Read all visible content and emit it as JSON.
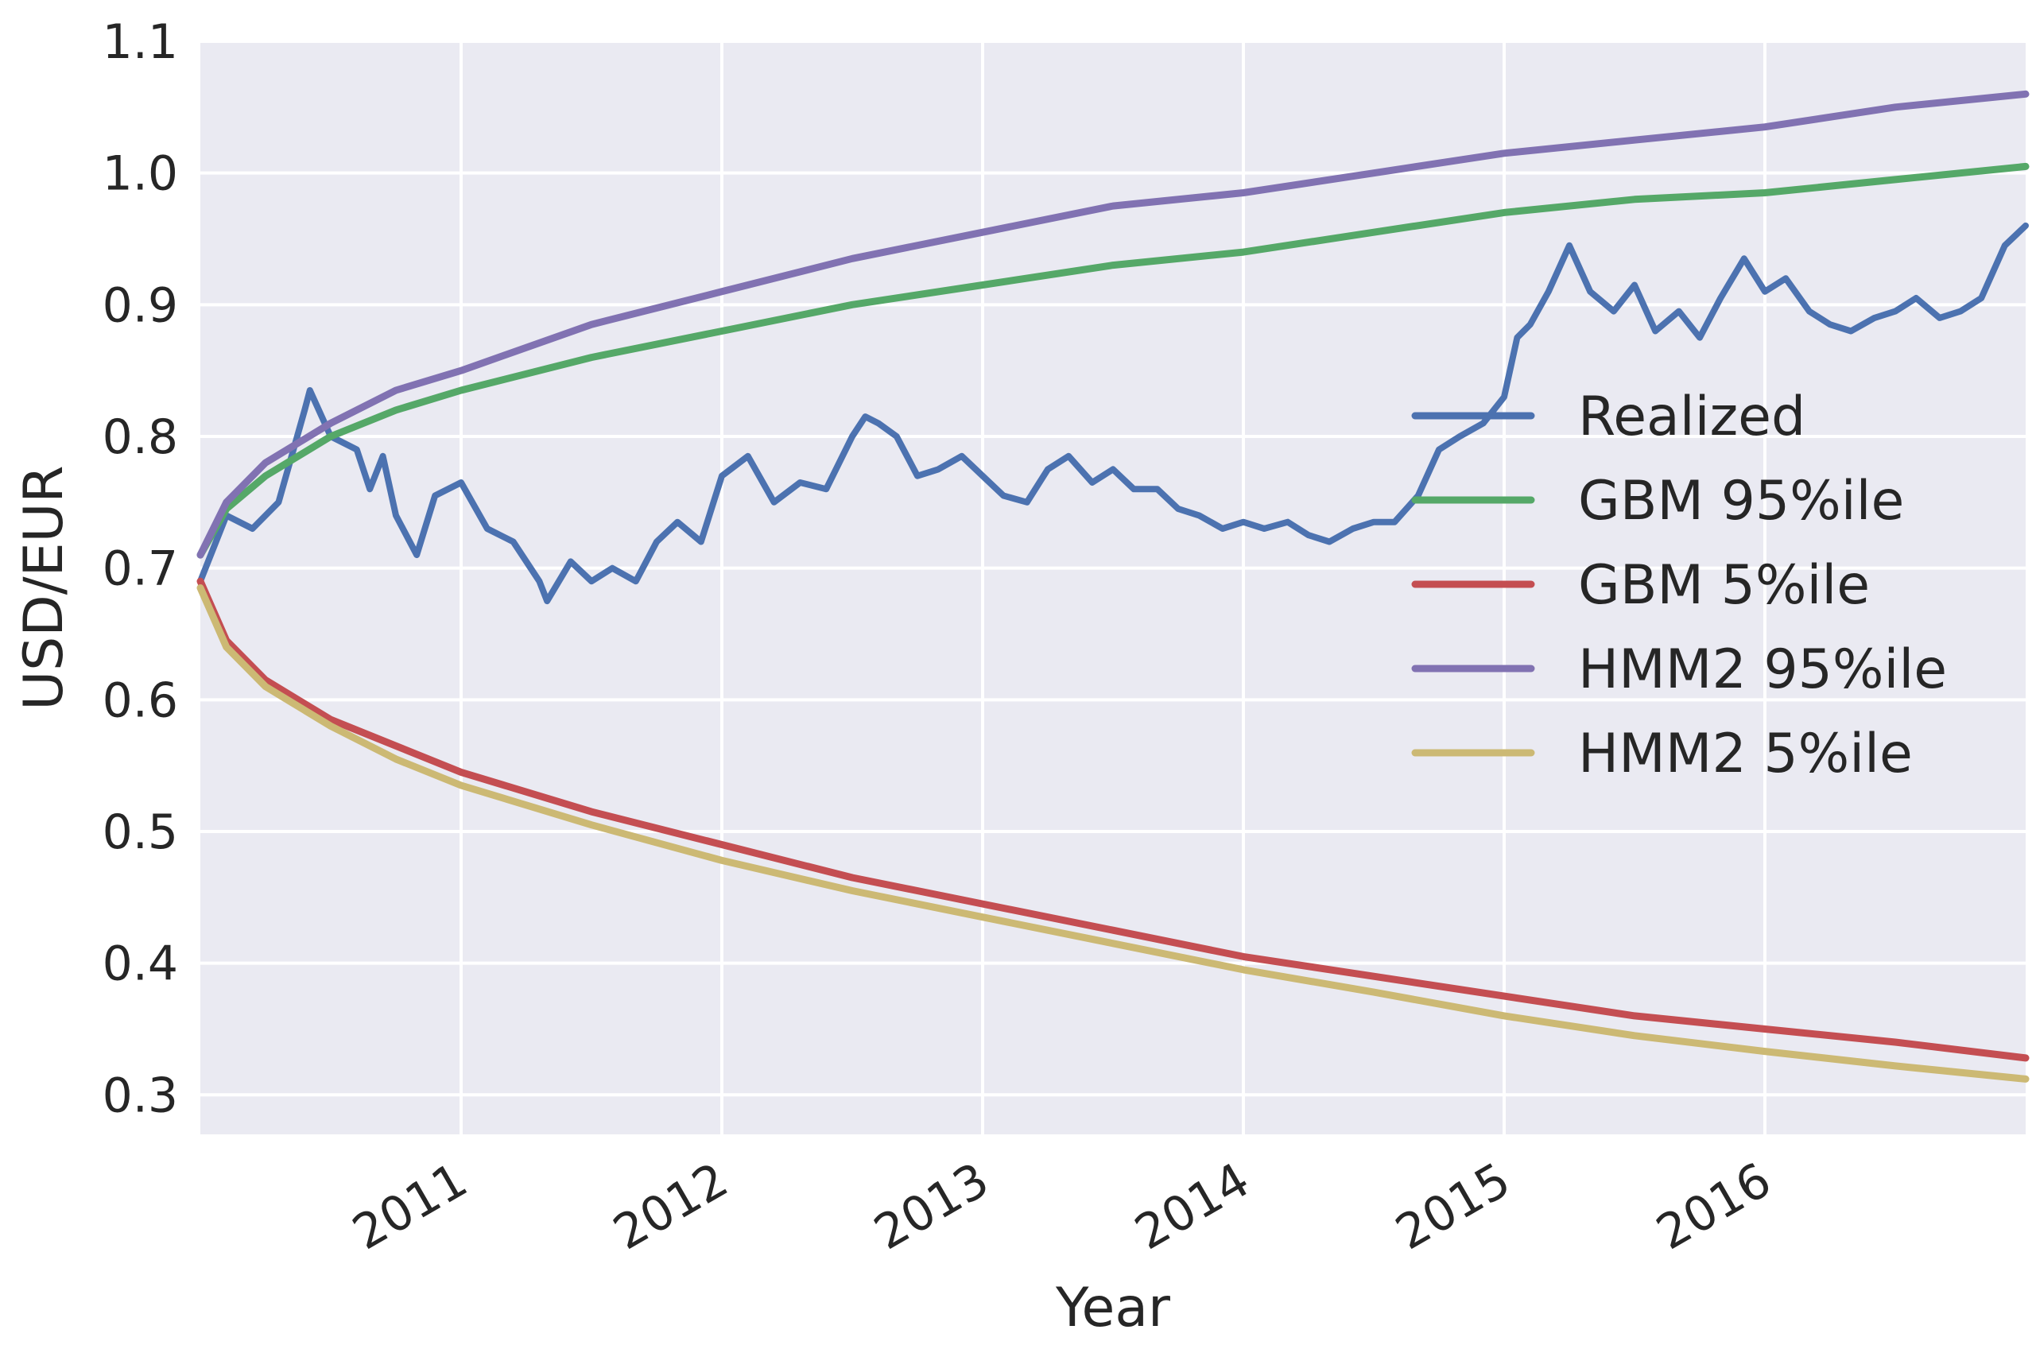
{
  "chart_data": {
    "type": "line",
    "title": "",
    "xlabel": "Year",
    "ylabel": "USD/EUR",
    "xlim": [
      2010.0,
      2017.0
    ],
    "ylim": [
      0.27,
      1.1
    ],
    "grid": true,
    "legend_position": "right",
    "x_ticks": [
      {
        "value": 2011,
        "label": "2011"
      },
      {
        "value": 2012,
        "label": "2012"
      },
      {
        "value": 2013,
        "label": "2013"
      },
      {
        "value": 2014,
        "label": "2014"
      },
      {
        "value": 2015,
        "label": "2015"
      },
      {
        "value": 2016,
        "label": "2016"
      }
    ],
    "y_ticks": [
      {
        "value": 0.3,
        "label": "0.3"
      },
      {
        "value": 0.4,
        "label": "0.4"
      },
      {
        "value": 0.5,
        "label": "0.5"
      },
      {
        "value": 0.6,
        "label": "0.6"
      },
      {
        "value": 0.7,
        "label": "0.7"
      },
      {
        "value": 0.8,
        "label": "0.8"
      },
      {
        "value": 0.9,
        "label": "0.9"
      },
      {
        "value": 1.0,
        "label": "1.0"
      },
      {
        "value": 1.1,
        "label": "1.1"
      }
    ],
    "series": [
      {
        "name": "Realized",
        "color": "#4c72b0",
        "x": [
          2010.0,
          2010.1,
          2010.2,
          2010.3,
          2010.4,
          2010.42,
          2010.5,
          2010.6,
          2010.65,
          2010.7,
          2010.75,
          2010.83,
          2010.9,
          2011.0,
          2011.1,
          2011.2,
          2011.3,
          2011.33,
          2011.42,
          2011.5,
          2011.58,
          2011.67,
          2011.75,
          2011.83,
          2011.92,
          2012.0,
          2012.1,
          2012.2,
          2012.3,
          2012.4,
          2012.5,
          2012.55,
          2012.6,
          2012.67,
          2012.75,
          2012.83,
          2012.92,
          2013.0,
          2013.08,
          2013.17,
          2013.25,
          2013.33,
          2013.42,
          2013.5,
          2013.58,
          2013.67,
          2013.75,
          2013.83,
          2013.92,
          2014.0,
          2014.08,
          2014.17,
          2014.25,
          2014.33,
          2014.42,
          2014.5,
          2014.58,
          2014.67,
          2014.75,
          2014.83,
          2014.92,
          2015.0,
          2015.05,
          2015.1,
          2015.17,
          2015.25,
          2015.33,
          2015.42,
          2015.5,
          2015.58,
          2015.67,
          2015.75,
          2015.83,
          2015.92,
          2016.0,
          2016.08,
          2016.17,
          2016.25,
          2016.33,
          2016.42,
          2016.5,
          2016.58,
          2016.67,
          2016.75,
          2016.83,
          2016.92,
          2017.0
        ],
        "y": [
          0.69,
          0.74,
          0.73,
          0.75,
          0.82,
          0.835,
          0.8,
          0.79,
          0.76,
          0.785,
          0.74,
          0.71,
          0.755,
          0.765,
          0.73,
          0.72,
          0.69,
          0.675,
          0.705,
          0.69,
          0.7,
          0.69,
          0.72,
          0.735,
          0.72,
          0.77,
          0.785,
          0.75,
          0.765,
          0.76,
          0.8,
          0.815,
          0.81,
          0.8,
          0.77,
          0.775,
          0.785,
          0.77,
          0.755,
          0.75,
          0.775,
          0.785,
          0.765,
          0.775,
          0.76,
          0.76,
          0.745,
          0.74,
          0.73,
          0.735,
          0.73,
          0.735,
          0.725,
          0.72,
          0.73,
          0.735,
          0.735,
          0.755,
          0.79,
          0.8,
          0.81,
          0.83,
          0.875,
          0.885,
          0.91,
          0.945,
          0.91,
          0.895,
          0.915,
          0.88,
          0.895,
          0.875,
          0.905,
          0.935,
          0.91,
          0.92,
          0.895,
          0.885,
          0.88,
          0.89,
          0.895,
          0.905,
          0.89,
          0.895,
          0.905,
          0.945,
          0.96
        ]
      },
      {
        "name": "GBM 95%ile",
        "color": "#55a868",
        "x": [
          2010.0,
          2010.1,
          2010.25,
          2010.5,
          2010.75,
          2011.0,
          2011.5,
          2012.0,
          2012.5,
          2013.0,
          2013.5,
          2014.0,
          2014.5,
          2015.0,
          2015.5,
          2016.0,
          2016.5,
          2017.0
        ],
        "y": [
          0.71,
          0.745,
          0.77,
          0.8,
          0.82,
          0.835,
          0.86,
          0.88,
          0.9,
          0.915,
          0.93,
          0.94,
          0.955,
          0.97,
          0.98,
          0.985,
          0.995,
          1.005
        ]
      },
      {
        "name": "GBM 5%ile",
        "color": "#c44e52",
        "x": [
          2010.0,
          2010.1,
          2010.25,
          2010.5,
          2010.75,
          2011.0,
          2011.5,
          2012.0,
          2012.5,
          2013.0,
          2013.5,
          2014.0,
          2014.5,
          2015.0,
          2015.5,
          2016.0,
          2016.5,
          2017.0
        ],
        "y": [
          0.69,
          0.645,
          0.615,
          0.585,
          0.565,
          0.545,
          0.515,
          0.49,
          0.465,
          0.445,
          0.425,
          0.405,
          0.39,
          0.375,
          0.36,
          0.35,
          0.34,
          0.328
        ]
      },
      {
        "name": "HMM2 95%ile",
        "color": "#8172b2",
        "x": [
          2010.0,
          2010.1,
          2010.25,
          2010.5,
          2010.75,
          2011.0,
          2011.5,
          2012.0,
          2012.5,
          2013.0,
          2013.5,
          2014.0,
          2014.5,
          2015.0,
          2015.5,
          2016.0,
          2016.5,
          2017.0
        ],
        "y": [
          0.71,
          0.75,
          0.78,
          0.81,
          0.835,
          0.85,
          0.885,
          0.91,
          0.935,
          0.955,
          0.975,
          0.985,
          1.0,
          1.015,
          1.025,
          1.035,
          1.05,
          1.06
        ]
      },
      {
        "name": "HMM2 5%ile",
        "color": "#ccb974",
        "x": [
          2010.0,
          2010.1,
          2010.25,
          2010.5,
          2010.75,
          2011.0,
          2011.5,
          2012.0,
          2012.5,
          2013.0,
          2013.5,
          2014.0,
          2014.5,
          2015.0,
          2015.5,
          2016.0,
          2016.5,
          2017.0
        ],
        "y": [
          0.685,
          0.64,
          0.61,
          0.58,
          0.555,
          0.535,
          0.505,
          0.478,
          0.455,
          0.435,
          0.415,
          0.395,
          0.378,
          0.36,
          0.345,
          0.333,
          0.322,
          0.312
        ]
      }
    ]
  }
}
